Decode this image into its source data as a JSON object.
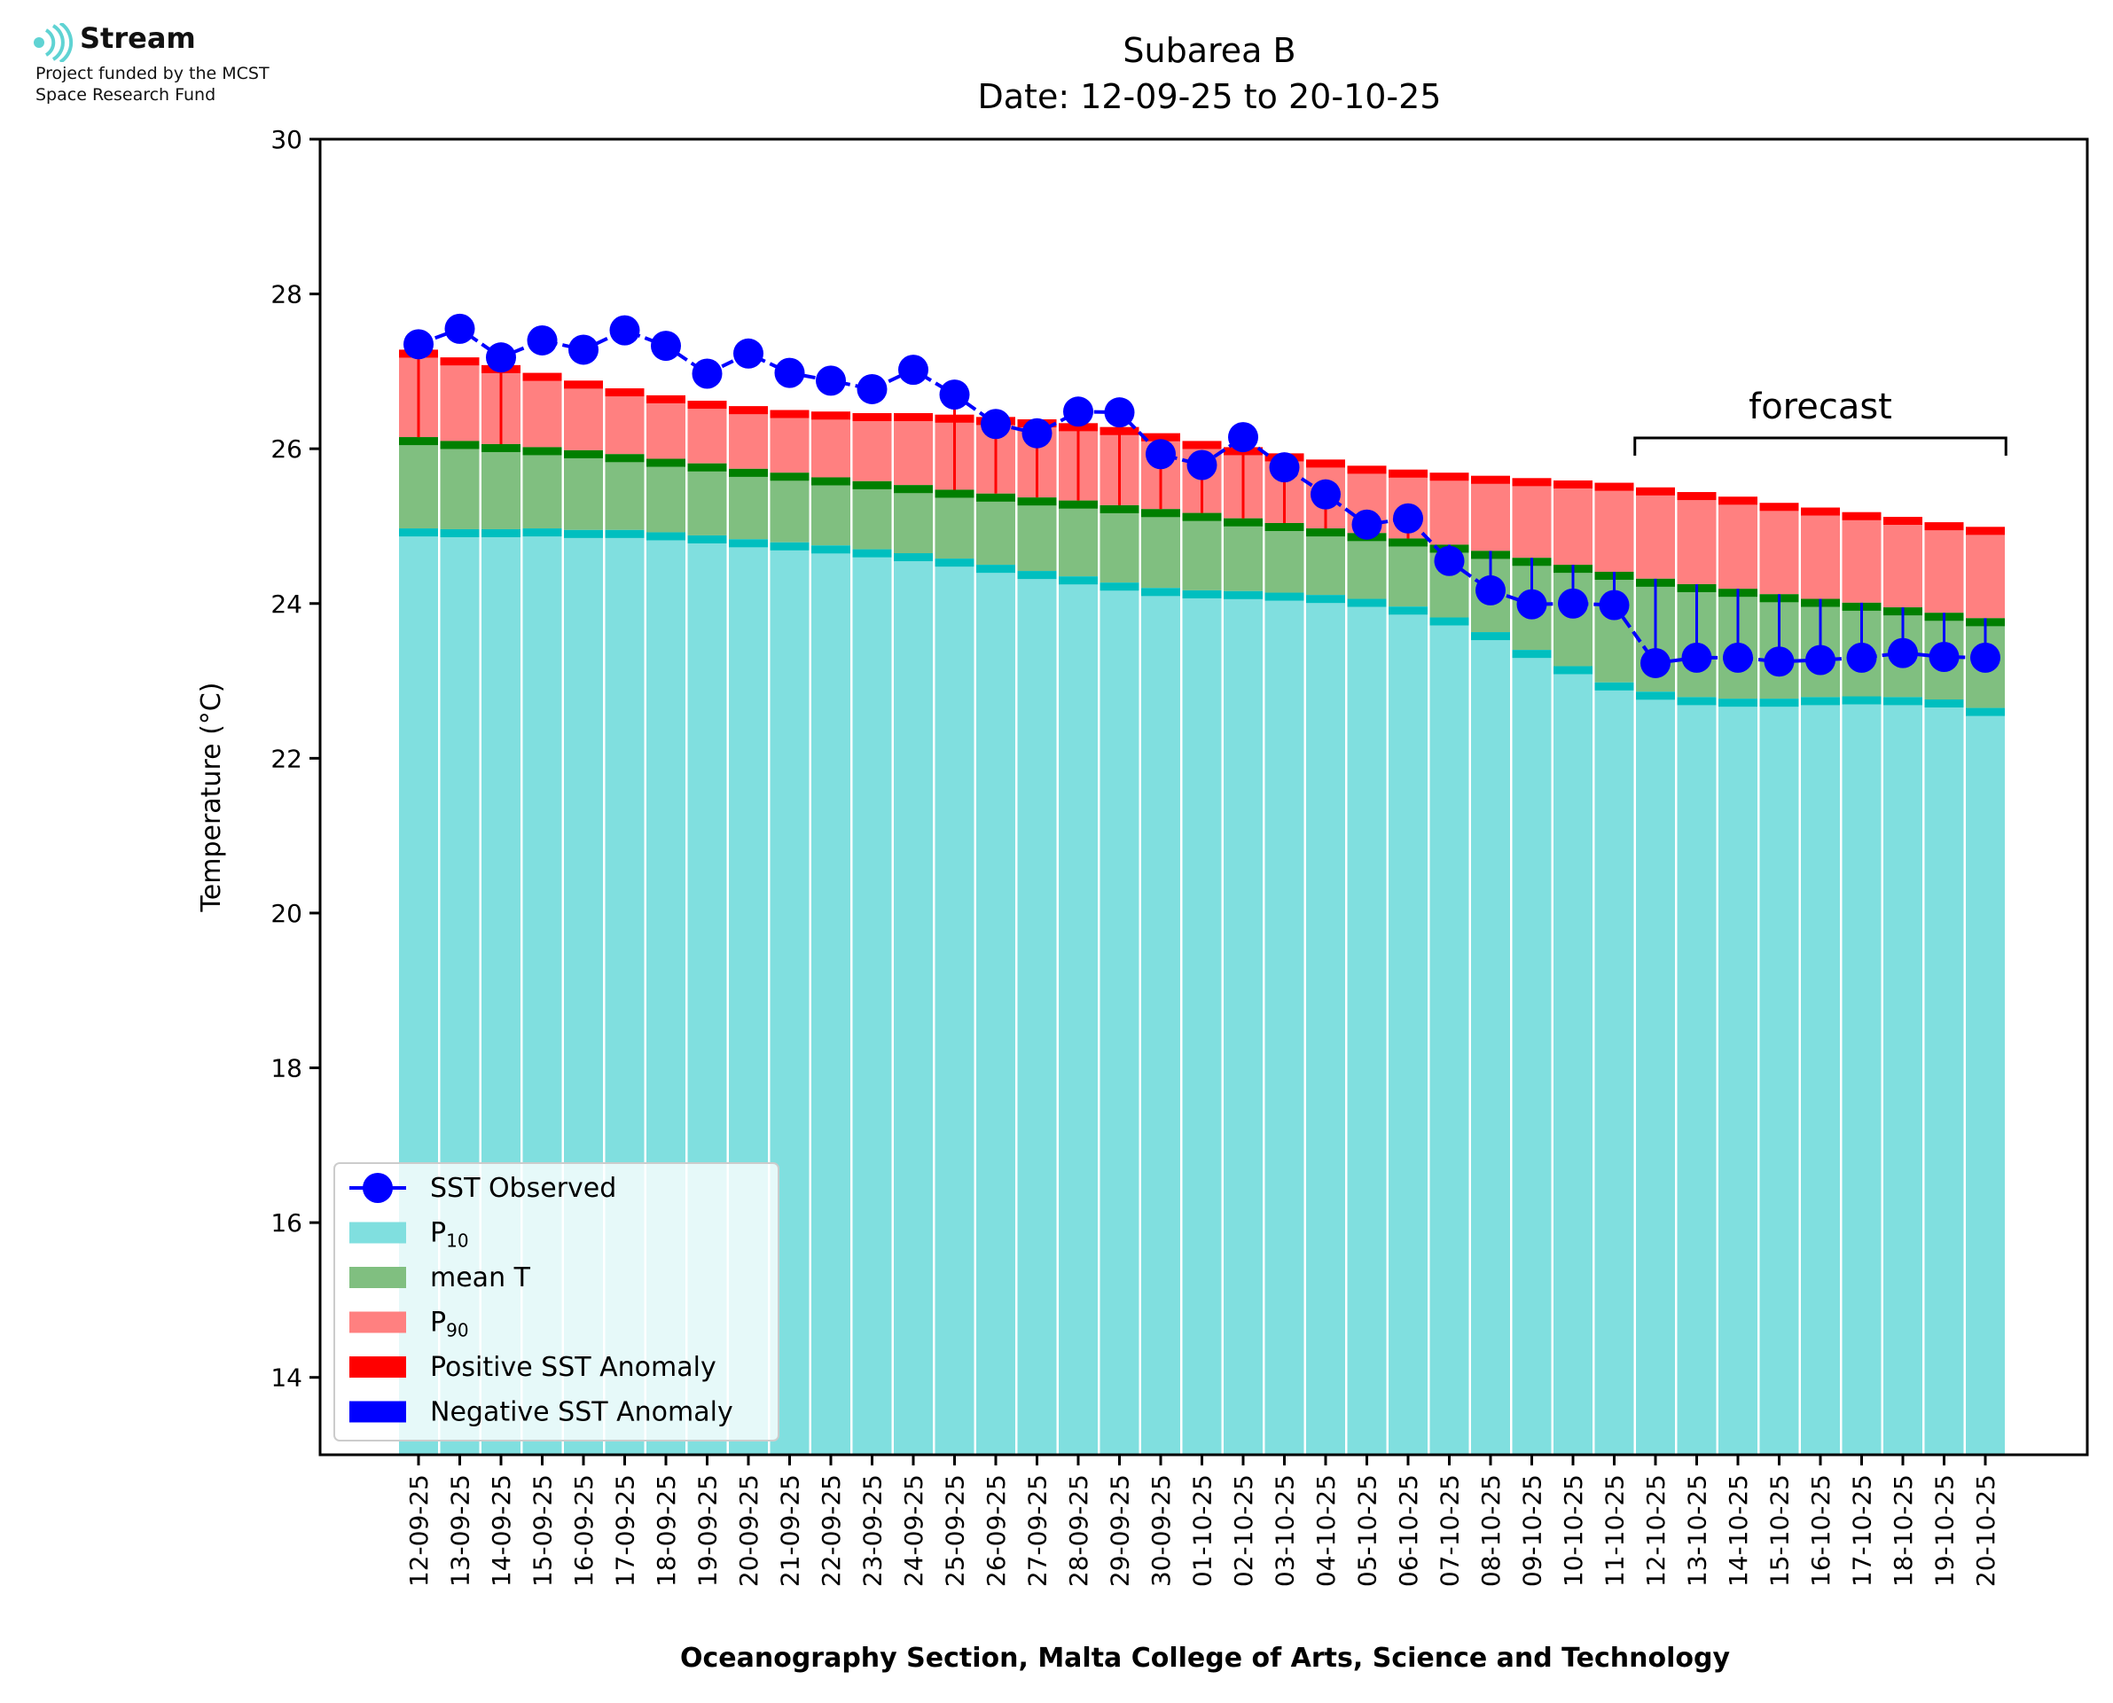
{
  "logo": {
    "name": "Stream",
    "funding_line1": "Project funded by the MCST",
    "funding_line2": "Space Research Fund"
  },
  "chart_data": {
    "type": "bar",
    "title": "Subarea B",
    "subtitle": "Date: 12-09-25 to 20-10-25",
    "xlabel": "Oceanography Section, Malta College of Arts, Science and Technology",
    "ylabel": "Temperature (°C)",
    "ylim": [
      13,
      30
    ],
    "yticks": [
      14,
      16,
      18,
      20,
      22,
      24,
      26,
      28,
      30
    ],
    "grid": false,
    "legend_position": "lower-left",
    "annotation": "forecast",
    "forecast_start": "12-10-25",
    "forecast_end": "20-10-25",
    "categories": [
      "12-09-25",
      "13-09-25",
      "14-09-25",
      "15-09-25",
      "16-09-25",
      "17-09-25",
      "18-09-25",
      "19-09-25",
      "20-09-25",
      "21-09-25",
      "22-09-25",
      "23-09-25",
      "24-09-25",
      "25-09-25",
      "26-09-25",
      "27-09-25",
      "28-09-25",
      "29-09-25",
      "30-09-25",
      "01-10-25",
      "02-10-25",
      "03-10-25",
      "04-10-25",
      "05-10-25",
      "06-10-25",
      "07-10-25",
      "08-10-25",
      "09-10-25",
      "10-10-25",
      "11-10-25",
      "12-10-25",
      "13-10-25",
      "14-10-25",
      "15-10-25",
      "16-10-25",
      "17-10-25",
      "18-10-25",
      "19-10-25",
      "20-10-25"
    ],
    "series": [
      {
        "name": "SST Observed",
        "color": "#0000ff",
        "values": [
          27.35,
          27.55,
          27.18,
          27.4,
          27.28,
          27.53,
          27.33,
          26.97,
          27.23,
          26.98,
          26.88,
          26.77,
          27.02,
          26.7,
          26.32,
          26.2,
          26.48,
          26.47,
          25.93,
          25.79,
          26.15,
          25.76,
          25.41,
          25.02,
          25.1,
          24.55,
          24.17,
          23.99,
          24.0,
          23.98,
          23.23,
          23.3,
          23.3,
          23.25,
          23.27,
          23.3,
          23.36,
          23.31,
          23.3
        ]
      },
      {
        "name": "P10",
        "color": "#80dfdf",
        "values": [
          24.97,
          24.96,
          24.96,
          24.97,
          24.95,
          24.95,
          24.92,
          24.88,
          24.83,
          24.79,
          24.75,
          24.7,
          24.65,
          24.58,
          24.5,
          24.42,
          24.35,
          24.27,
          24.2,
          24.17,
          24.16,
          24.14,
          24.11,
          24.06,
          23.96,
          23.82,
          23.63,
          23.4,
          23.19,
          22.98,
          22.86,
          22.79,
          22.77,
          22.77,
          22.79,
          22.8,
          22.79,
          22.76,
          22.65
        ]
      },
      {
        "name": "mean T",
        "color": "#80bf80",
        "values": [
          26.15,
          26.1,
          26.06,
          26.02,
          25.98,
          25.93,
          25.87,
          25.81,
          25.74,
          25.69,
          25.63,
          25.58,
          25.53,
          25.47,
          25.42,
          25.37,
          25.33,
          25.27,
          25.22,
          25.17,
          25.1,
          25.04,
          24.97,
          24.91,
          24.84,
          24.76,
          24.68,
          24.59,
          24.5,
          24.41,
          24.32,
          24.25,
          24.19,
          24.12,
          24.06,
          24.01,
          23.95,
          23.88,
          23.81
        ]
      },
      {
        "name": "P90",
        "color": "#ff8080",
        "values": [
          27.28,
          27.18,
          27.08,
          26.98,
          26.88,
          26.78,
          26.69,
          26.62,
          26.55,
          26.5,
          26.48,
          26.46,
          26.46,
          26.44,
          26.41,
          26.38,
          26.33,
          26.28,
          26.2,
          26.1,
          26.02,
          25.94,
          25.86,
          25.78,
          25.73,
          25.69,
          25.65,
          25.62,
          25.59,
          25.56,
          25.5,
          25.44,
          25.38,
          25.3,
          25.24,
          25.18,
          25.12,
          25.05,
          24.99
        ]
      }
    ],
    "legend": [
      {
        "label": "SST Observed",
        "kind": "marker-line",
        "color": "#0000ff"
      },
      {
        "label": "P",
        "sub": "10",
        "kind": "patch",
        "color": "#80dfdf"
      },
      {
        "label": "mean T",
        "kind": "patch",
        "color": "#80bf80"
      },
      {
        "label": "P",
        "sub": "90",
        "kind": "patch",
        "color": "#ff8080"
      },
      {
        "label": "Positive SST Anomaly",
        "kind": "patch",
        "color": "#ff0000"
      },
      {
        "label": "Negative SST Anomaly",
        "kind": "patch",
        "color": "#0000ff"
      }
    ],
    "colors": {
      "p10_edge": "#00bfbf",
      "mean_edge": "#007f00",
      "p90_edge": "#ff0000",
      "positive_anomaly": "#ff0000",
      "negative_anomaly": "#0000ff"
    }
  }
}
